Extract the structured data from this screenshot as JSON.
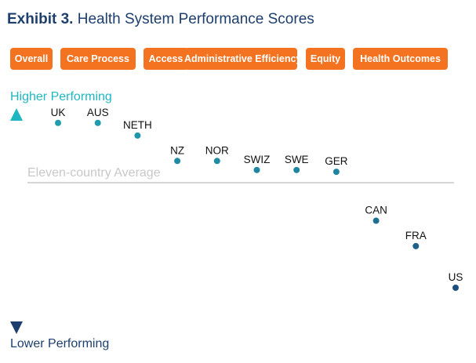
{
  "header": {
    "exhibit": "Exhibit 3.",
    "title": "Health System Performance Scores"
  },
  "tabs": [
    {
      "label": "Overall"
    },
    {
      "label": "Care Process"
    },
    {
      "label": "Access"
    },
    {
      "label": "Administrative Efficiency"
    },
    {
      "label": "Equity"
    },
    {
      "label": "Health Outcomes"
    }
  ],
  "colors": {
    "tab_bg": "#f37321",
    "title": "#1d3f6e",
    "high": "#1fb7c1",
    "low": "#1d3f6e",
    "average_line": "#c8c8c8"
  },
  "chart_data": {
    "type": "scatter",
    "title": "Health System Performance Scores",
    "y_axis_top_label": "Higher Performing",
    "y_axis_bottom_label": "Lower Performing",
    "average_label": "Eleven-country Average",
    "average_value": 0,
    "ylim": [
      -1,
      0.5
    ],
    "grid": false,
    "points": [
      {
        "label": "UK",
        "rank": 1,
        "value": 0.33
      },
      {
        "label": "AUS",
        "rank": 2,
        "value": 0.33
      },
      {
        "label": "NETH",
        "rank": 3,
        "value": 0.26
      },
      {
        "label": "NZ",
        "rank": 4,
        "value": 0.12
      },
      {
        "label": "NOR",
        "rank": 5,
        "value": 0.12
      },
      {
        "label": "SWIZ",
        "rank": 6,
        "value": 0.07
      },
      {
        "label": "SWE",
        "rank": 7,
        "value": 0.07
      },
      {
        "label": "GER",
        "rank": 8,
        "value": 0.06
      },
      {
        "label": "CAN",
        "rank": 9,
        "value": -0.21
      },
      {
        "label": "FRA",
        "rank": 10,
        "value": -0.35
      },
      {
        "label": "US",
        "rank": 11,
        "value": -0.58
      }
    ]
  }
}
